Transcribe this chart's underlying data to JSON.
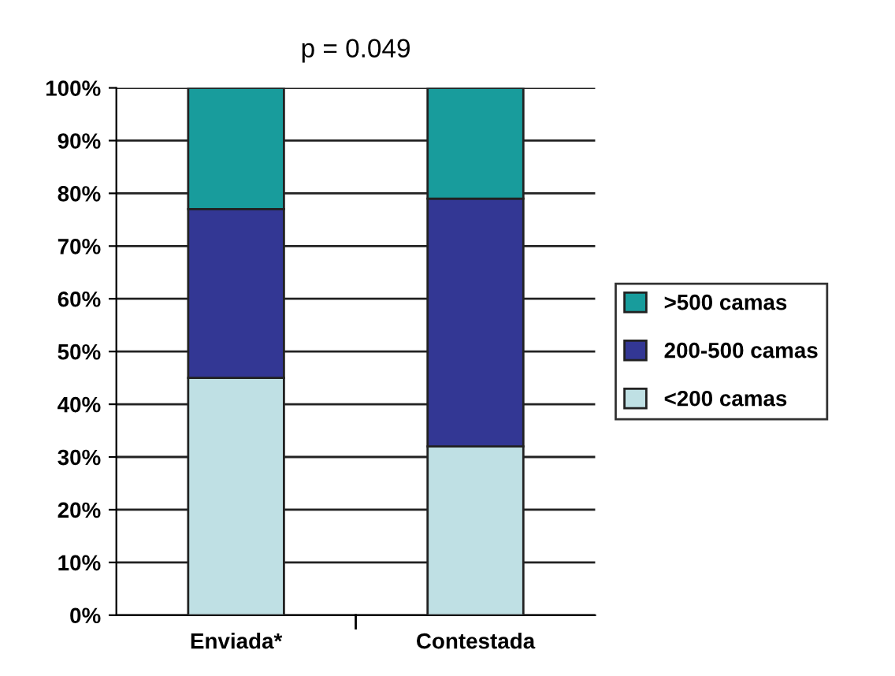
{
  "chart_data": {
    "type": "bar",
    "title": "p = 0.049",
    "categories": [
      "Enviada*",
      "Contestada"
    ],
    "stacked": true,
    "series": [
      {
        "name": "<200 camas",
        "color": "#bfe0e4",
        "values": [
          45,
          32
        ]
      },
      {
        "name": "200-500 camas",
        "color": "#333794",
        "values": [
          32,
          47
        ]
      },
      {
        "name": ">500 camas",
        "color": "#189c9c",
        "values": [
          23,
          21
        ]
      }
    ],
    "ylim": [
      0,
      100
    ],
    "yticks": [
      {
        "value": 0,
        "label": "0%"
      },
      {
        "value": 10,
        "label": "10%"
      },
      {
        "value": 20,
        "label": "20%"
      },
      {
        "value": 30,
        "label": "30%"
      },
      {
        "value": 40,
        "label": "40%"
      },
      {
        "value": 50,
        "label": "50%"
      },
      {
        "value": 60,
        "label": "60%"
      },
      {
        "value": 70,
        "label": "70%"
      },
      {
        "value": 80,
        "label": "80%"
      },
      {
        "value": 90,
        "label": "90%"
      },
      {
        "value": 100,
        "label": "100%"
      }
    ],
    "grid": "y",
    "legend": "right"
  }
}
